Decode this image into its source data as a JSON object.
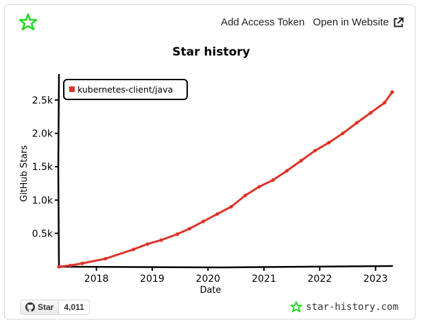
{
  "header": {
    "add_token_label": "Add Access Token",
    "open_website_label": "Open in Website"
  },
  "badge": {
    "star_label": "Star",
    "star_count": "4,011"
  },
  "watermark": "star-history.com",
  "colors": {
    "series": "#dd3328",
    "logo": "#26d826",
    "axis": "#000000"
  },
  "chart_data": {
    "type": "line",
    "title": "Star history",
    "xlabel": "Date",
    "ylabel": "GitHub Stars",
    "xlim": [
      "2017-05-01",
      "2023-04-20"
    ],
    "ylim": [
      0,
      2900
    ],
    "xticks": [
      {
        "date": "2018-01-01",
        "label": "2018"
      },
      {
        "date": "2019-01-01",
        "label": "2019"
      },
      {
        "date": "2020-01-01",
        "label": "2020"
      },
      {
        "date": "2021-01-01",
        "label": "2021"
      },
      {
        "date": "2022-01-01",
        "label": "2022"
      },
      {
        "date": "2023-01-01",
        "label": "2023"
      }
    ],
    "yticks": [
      {
        "value": 500,
        "label": "0.5k"
      },
      {
        "value": 1000,
        "label": "1.0k"
      },
      {
        "value": 1500,
        "label": "1.5k"
      },
      {
        "value": 2000,
        "label": "2.0k"
      },
      {
        "value": 2500,
        "label": "2.5k"
      }
    ],
    "grid": false,
    "legend_position": "top-left",
    "series": [
      {
        "name": "kubernetes-client/java",
        "color": "#dd3328",
        "points": [
          {
            "date": "2017-05-01",
            "stars": 0
          },
          {
            "date": "2017-07-15",
            "stars": 20
          },
          {
            "date": "2017-10-01",
            "stars": 50
          },
          {
            "date": "2018-03-01",
            "stars": 120
          },
          {
            "date": "2018-09-01",
            "stars": 260
          },
          {
            "date": "2018-12-01",
            "stars": 340
          },
          {
            "date": "2019-03-01",
            "stars": 400
          },
          {
            "date": "2019-06-15",
            "stars": 490
          },
          {
            "date": "2019-09-01",
            "stars": 570
          },
          {
            "date": "2019-12-01",
            "stars": 680
          },
          {
            "date": "2020-03-01",
            "stars": 790
          },
          {
            "date": "2020-06-01",
            "stars": 900
          },
          {
            "date": "2020-09-01",
            "stars": 1070
          },
          {
            "date": "2020-12-01",
            "stars": 1200
          },
          {
            "date": "2021-03-01",
            "stars": 1300
          },
          {
            "date": "2021-06-01",
            "stars": 1440
          },
          {
            "date": "2021-09-01",
            "stars": 1590
          },
          {
            "date": "2021-12-01",
            "stars": 1740
          },
          {
            "date": "2022-03-01",
            "stars": 1860
          },
          {
            "date": "2022-06-01",
            "stars": 2000
          },
          {
            "date": "2022-09-01",
            "stars": 2160
          },
          {
            "date": "2022-12-01",
            "stars": 2310
          },
          {
            "date": "2023-03-01",
            "stars": 2460
          },
          {
            "date": "2023-04-20",
            "stars": 2620
          }
        ]
      }
    ]
  }
}
